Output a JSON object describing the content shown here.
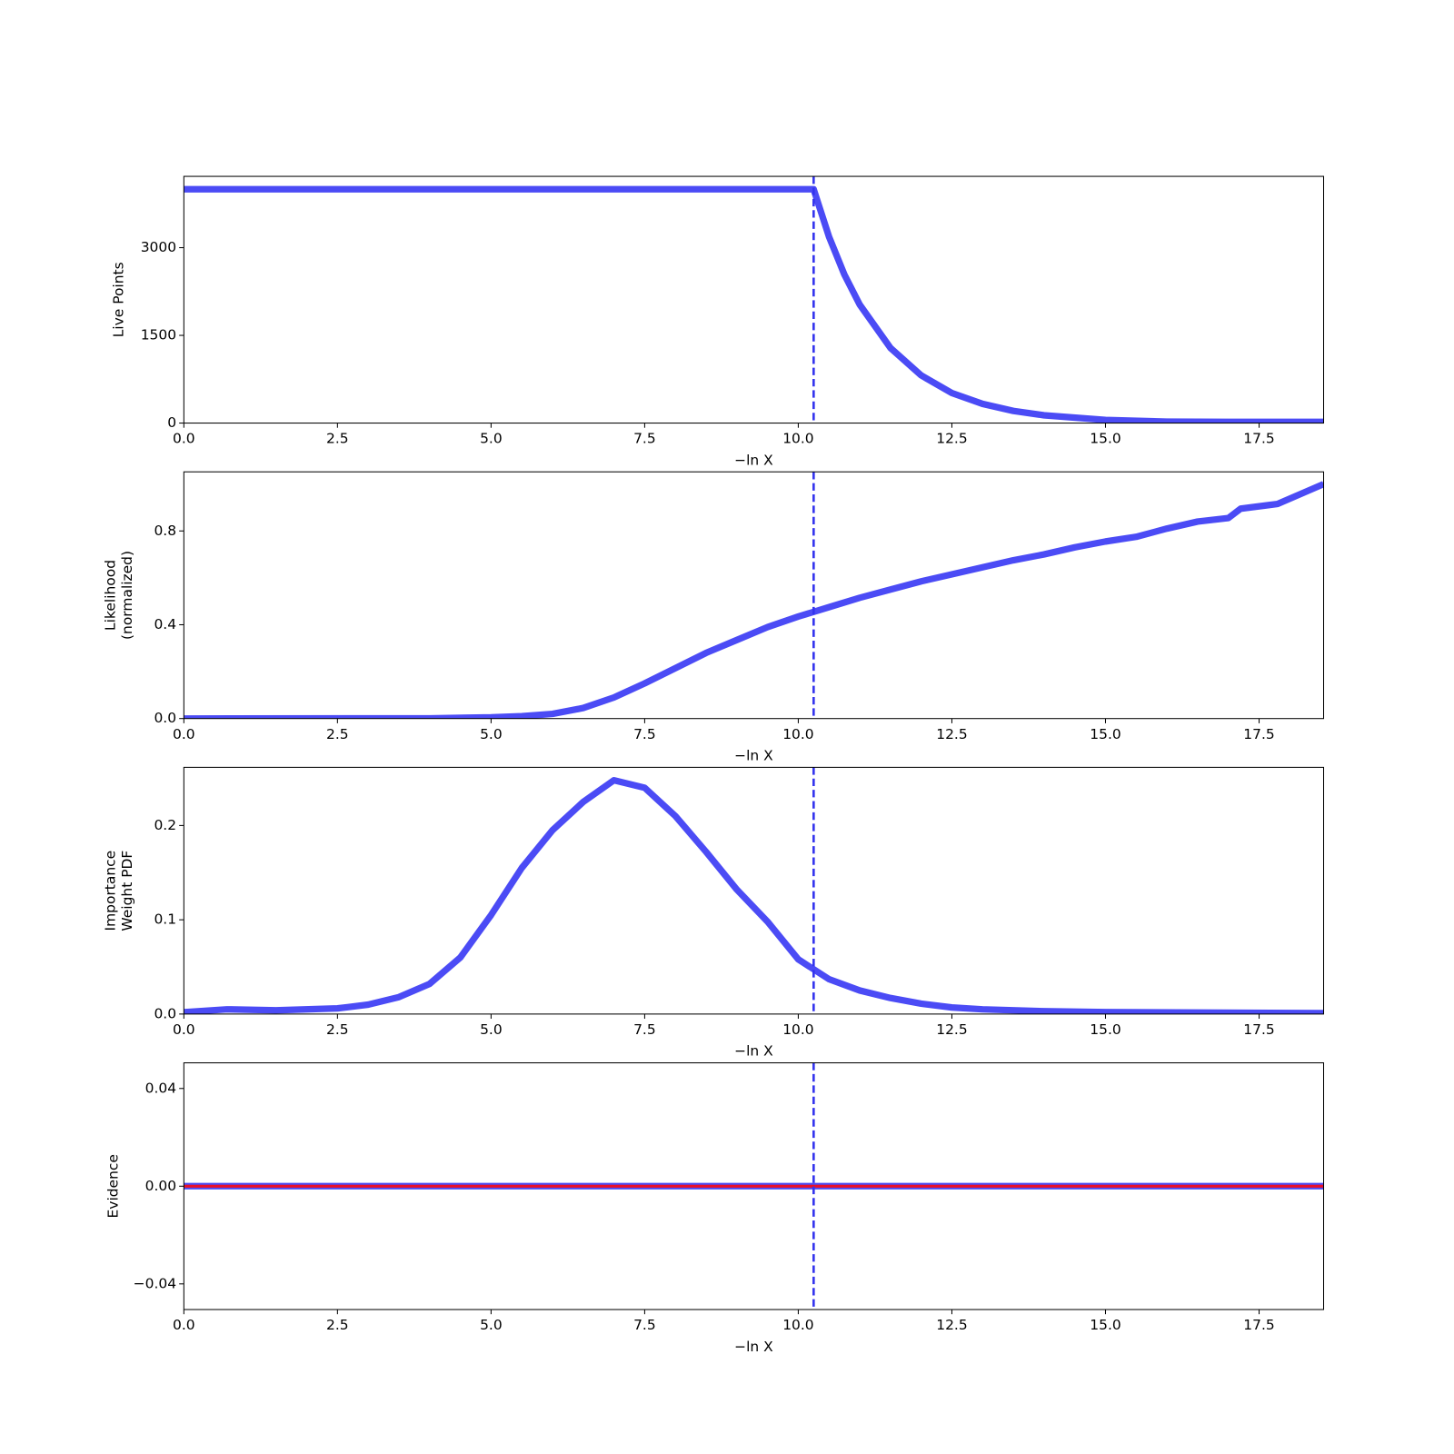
{
  "chart_data": [
    {
      "type": "line",
      "ylabel": [
        "Live Points"
      ],
      "xlabel": "−ln X",
      "x": [
        0,
        10.25,
        10.5,
        10.75,
        11,
        11.5,
        12,
        12.5,
        13,
        13.5,
        14,
        15,
        16,
        17,
        18.55
      ],
      "series": [
        {
          "color": "#4b4bf5",
          "values": [
            4000,
            4000,
            3188,
            2541,
            2025,
            1285,
            816,
            514,
            328,
            208,
            133,
            53,
            25,
            20,
            20
          ]
        }
      ],
      "vline": 10.25,
      "vline_color": "#3333ee",
      "xlim": [
        0,
        18.55
      ],
      "ylim": [
        0,
        4220
      ],
      "xticks": [
        {
          "value": 0,
          "label": "0.0"
        },
        2.5,
        {
          "value": 5,
          "label": "5.0"
        },
        7.5,
        {
          "value": 10,
          "label": "10.0"
        },
        12.5,
        {
          "value": 15,
          "label": "15.0"
        },
        17.5
      ],
      "yticks": [
        0,
        1500,
        3000
      ]
    },
    {
      "type": "line",
      "ylabel": [
        "Likelihood",
        "(normalized)"
      ],
      "xlabel": "−ln X",
      "x": [
        0,
        4,
        5,
        5.5,
        6,
        6.5,
        7,
        7.5,
        8,
        8.5,
        9,
        9.5,
        10,
        10.5,
        11,
        11.5,
        12,
        12.5,
        13,
        13.5,
        14,
        14.5,
        15,
        15.5,
        16,
        16.5,
        17,
        17.2,
        17.8,
        18.55
      ],
      "series": [
        {
          "color": "#4b4bf5",
          "values": [
            0,
            0.001,
            0.005,
            0.01,
            0.02,
            0.045,
            0.09,
            0.15,
            0.215,
            0.28,
            0.335,
            0.39,
            0.435,
            0.475,
            0.515,
            0.55,
            0.585,
            0.615,
            0.645,
            0.675,
            0.7,
            0.73,
            0.755,
            0.775,
            0.81,
            0.84,
            0.855,
            0.895,
            0.915,
            1.0
          ]
        }
      ],
      "vline": 10.25,
      "vline_color": "#3333ee",
      "xlim": [
        0,
        18.55
      ],
      "ylim": [
        0,
        1.052
      ],
      "xticks": [
        {
          "value": 0,
          "label": "0.0"
        },
        2.5,
        {
          "value": 5,
          "label": "5.0"
        },
        7.5,
        {
          "value": 10,
          "label": "10.0"
        },
        12.5,
        {
          "value": 15,
          "label": "15.0"
        },
        17.5
      ],
      "yticks": [
        {
          "value": 0,
          "label": "0.0"
        },
        0.4,
        0.8
      ]
    },
    {
      "type": "line",
      "ylabel": [
        "Importance",
        "Weight PDF"
      ],
      "xlabel": "−ln X",
      "x": [
        0,
        0.7,
        1.5,
        2.5,
        3,
        3.5,
        4,
        4.5,
        5,
        5.5,
        6,
        6.5,
        7,
        7.5,
        8,
        8.5,
        9,
        9.5,
        10,
        10.5,
        11,
        11.5,
        12,
        12.5,
        13,
        14,
        15,
        18.55
      ],
      "series": [
        {
          "color": "#4b4bf5",
          "values": [
            0.002,
            0.005,
            0.004,
            0.006,
            0.01,
            0.018,
            0.032,
            0.06,
            0.105,
            0.155,
            0.195,
            0.225,
            0.248,
            0.24,
            0.21,
            0.172,
            0.132,
            0.098,
            0.058,
            0.037,
            0.025,
            0.017,
            0.011,
            0.007,
            0.005,
            0.003,
            0.002,
            0.001
          ]
        }
      ],
      "vline": 10.25,
      "vline_color": "#3333ee",
      "xlim": [
        0,
        18.55
      ],
      "ylim": [
        0,
        0.2617
      ],
      "xticks": [
        {
          "value": 0,
          "label": "0.0"
        },
        2.5,
        {
          "value": 5,
          "label": "5.0"
        },
        7.5,
        {
          "value": 10,
          "label": "10.0"
        },
        12.5,
        {
          "value": 15,
          "label": "15.0"
        },
        17.5
      ],
      "yticks": [
        {
          "value": 0,
          "label": "0.0"
        },
        0.1,
        0.2
      ]
    },
    {
      "type": "line",
      "ylabel": [
        "Evidence"
      ],
      "xlabel": "−ln X",
      "x": [
        0,
        18.55
      ],
      "series": [
        {
          "color": "#4b4bf5",
          "values": [
            0,
            0
          ]
        },
        {
          "color": "#e8102a",
          "values": [
            0,
            0
          ]
        }
      ],
      "vline": 10.25,
      "vline_color": "#3333ee",
      "xlim": [
        0,
        18.55
      ],
      "ylim": [
        -0.0505,
        0.0505
      ],
      "xticks": [
        {
          "value": 0,
          "label": "0.0"
        },
        2.5,
        {
          "value": 5,
          "label": "5.0"
        },
        7.5,
        {
          "value": 10,
          "label": "10.0"
        },
        12.5,
        {
          "value": 15,
          "label": "15.0"
        },
        17.5
      ],
      "yticks": [
        {
          "value": -0.04,
          "label": "−0.04"
        },
        {
          "value": 0,
          "label": "0.00"
        },
        {
          "value": 0.04,
          "label": "0.04"
        }
      ]
    }
  ]
}
